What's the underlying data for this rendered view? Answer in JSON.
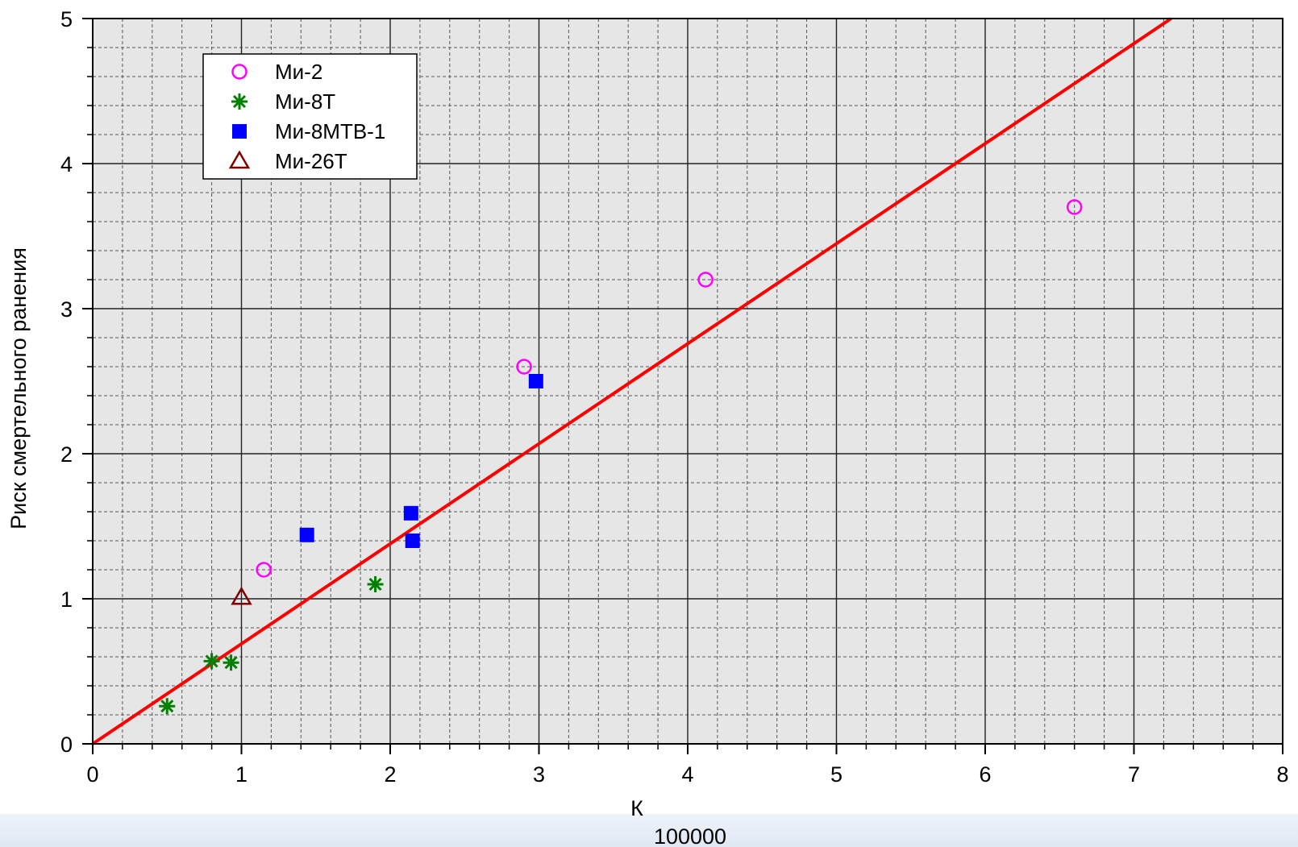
{
  "chart_data": {
    "type": "scatter",
    "xlabel_main": "К",
    "xlabel_sub": "100000",
    "ylabel": "Риск смертельного ранения",
    "xlim": [
      0,
      8
    ],
    "ylim": [
      0,
      5
    ],
    "x_ticks": [
      "0",
      "1",
      "2",
      "3",
      "4",
      "5",
      "6",
      "7",
      "8"
    ],
    "y_ticks": [
      "0",
      "1",
      "2",
      "3",
      "4",
      "5"
    ],
    "grid": true,
    "legend_position": "top-left",
    "background_color": "#e6e6e6",
    "series": [
      {
        "name": "Ми-2",
        "marker": "open-circle",
        "color": "#ff00ff",
        "points": [
          [
            1.15,
            1.2
          ],
          [
            2.9,
            2.6
          ],
          [
            4.12,
            3.2
          ],
          [
            6.6,
            3.7
          ]
        ]
      },
      {
        "name": "Ми-8Т",
        "marker": "asterisk",
        "color": "#008000",
        "points": [
          [
            0.5,
            0.26
          ],
          [
            0.8,
            0.57
          ],
          [
            0.93,
            0.56
          ],
          [
            1.9,
            1.1
          ]
        ]
      },
      {
        "name": "Ми-8МТВ-1",
        "marker": "filled-square",
        "color": "#0000ff",
        "points": [
          [
            1.44,
            1.44
          ],
          [
            2.14,
            1.59
          ],
          [
            2.15,
            1.4
          ],
          [
            2.98,
            2.5
          ]
        ]
      },
      {
        "name": "Ми-26Т",
        "marker": "open-triangle",
        "color": "#800000",
        "points": [
          [
            1.0,
            1.01
          ]
        ]
      }
    ],
    "fit_line": {
      "color": "#ff0000",
      "x": [
        0,
        7.25
      ],
      "y": [
        0,
        5
      ]
    }
  }
}
